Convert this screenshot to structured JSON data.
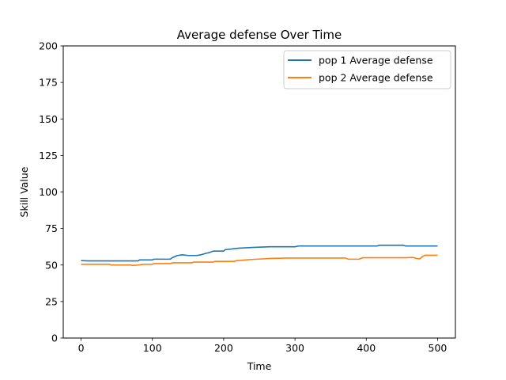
{
  "chart_data": {
    "type": "line",
    "title": "Average defense Over Time",
    "xlabel": "Time",
    "ylabel": "Skill Value",
    "xlim": [
      -25,
      525
    ],
    "ylim": [
      0,
      200
    ],
    "xticks": [
      0,
      100,
      200,
      300,
      400,
      500
    ],
    "yticks": [
      0,
      25,
      50,
      75,
      100,
      125,
      150,
      175,
      200
    ],
    "grid": false,
    "legend_position": "top-right",
    "series": [
      {
        "name": "pop 1 Average defense",
        "color": "#1f77b4",
        "points": [
          [
            0,
            53
          ],
          [
            10,
            52.8
          ],
          [
            80,
            52.8
          ],
          [
            82,
            53.5
          ],
          [
            100,
            53.5
          ],
          [
            102,
            54
          ],
          [
            125,
            54
          ],
          [
            128,
            55
          ],
          [
            135,
            56.5
          ],
          [
            142,
            57
          ],
          [
            150,
            56.5
          ],
          [
            162,
            56.5
          ],
          [
            168,
            57
          ],
          [
            175,
            58
          ],
          [
            180,
            58.5
          ],
          [
            185,
            59.5
          ],
          [
            200,
            59.5
          ],
          [
            202,
            60.5
          ],
          [
            212,
            61
          ],
          [
            220,
            61.5
          ],
          [
            240,
            62
          ],
          [
            265,
            62.5
          ],
          [
            300,
            62.5
          ],
          [
            305,
            63
          ],
          [
            415,
            63
          ],
          [
            418,
            63.5
          ],
          [
            452,
            63.5
          ],
          [
            455,
            63
          ],
          [
            500,
            63
          ]
        ]
      },
      {
        "name": "pop 2 Average defense",
        "color": "#ff7f0e",
        "points": [
          [
            0,
            50.5
          ],
          [
            40,
            50.5
          ],
          [
            42,
            50
          ],
          [
            70,
            50
          ],
          [
            72,
            49.7
          ],
          [
            80,
            50
          ],
          [
            88,
            50.5
          ],
          [
            100,
            50.5
          ],
          [
            102,
            51
          ],
          [
            125,
            51
          ],
          [
            128,
            51.5
          ],
          [
            155,
            51.5
          ],
          [
            158,
            52
          ],
          [
            185,
            52
          ],
          [
            188,
            52.5
          ],
          [
            215,
            52.5
          ],
          [
            218,
            53
          ],
          [
            225,
            53.2
          ],
          [
            238,
            53.8
          ],
          [
            255,
            54.2
          ],
          [
            265,
            54.5
          ],
          [
            290,
            54.8
          ],
          [
            370,
            54.8
          ],
          [
            375,
            54
          ],
          [
            390,
            54
          ],
          [
            395,
            55
          ],
          [
            455,
            55
          ],
          [
            465,
            55.2
          ],
          [
            470,
            54.5
          ],
          [
            475,
            54.2
          ],
          [
            478,
            55.5
          ],
          [
            482,
            56.7
          ],
          [
            500,
            56.7
          ]
        ]
      }
    ]
  }
}
